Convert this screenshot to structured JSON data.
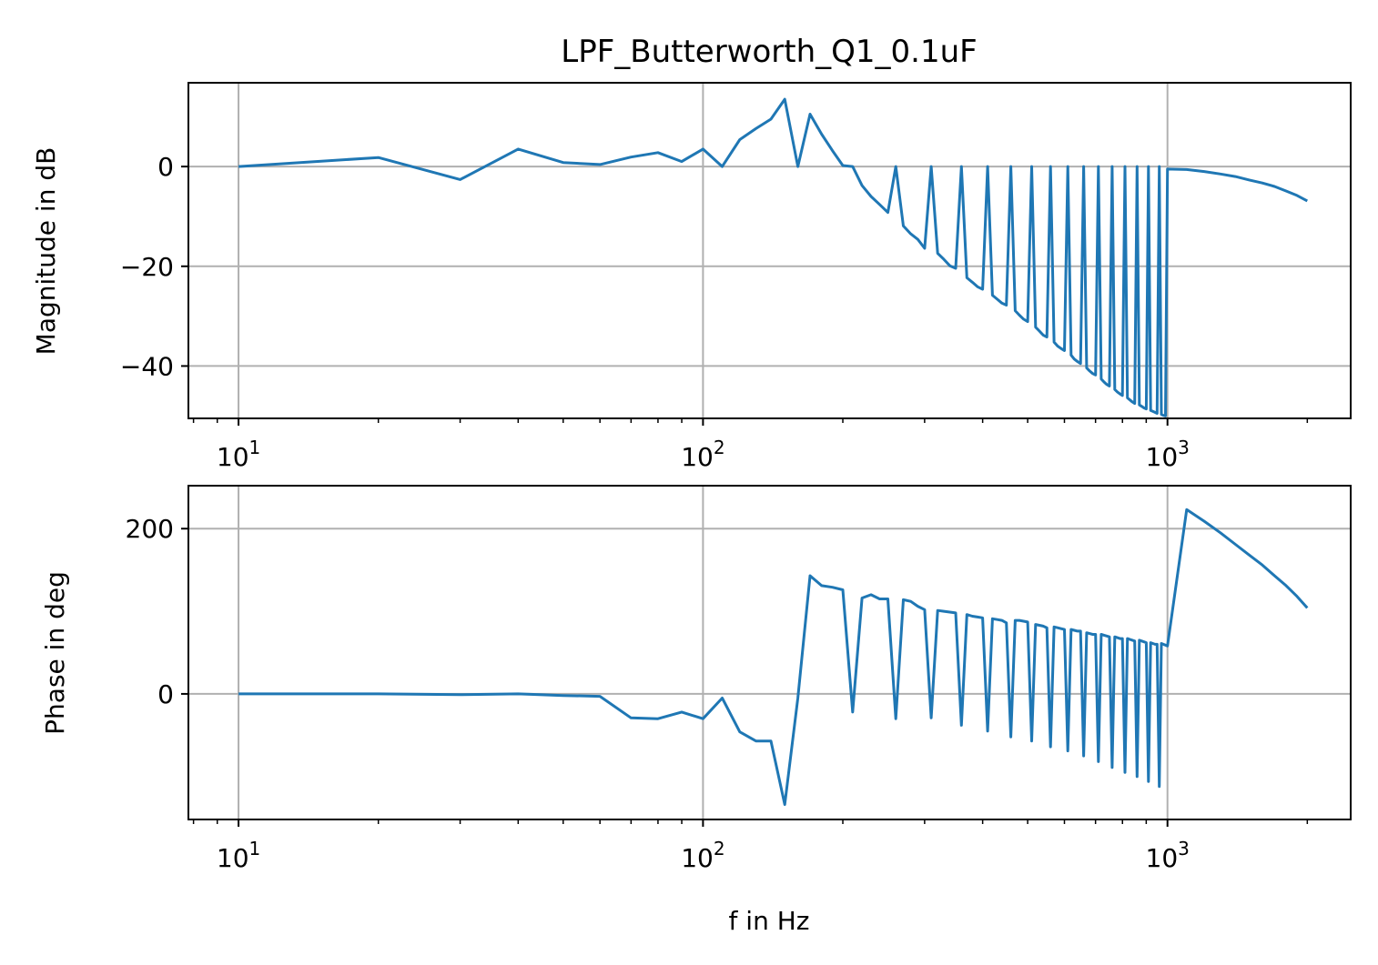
{
  "title": "LPF_Butterworth_Q1_0.1uF",
  "colors": {
    "series": "#1f77b4",
    "grid": "#b0b0b0",
    "axes": "#000000"
  },
  "chart_data": [
    {
      "type": "line",
      "id": "magnitude",
      "title": "LPF_Butterworth_Q1_0.1uF",
      "xlabel": "",
      "ylabel": "Magnitude in dB",
      "xscale": "log",
      "xlim": [
        7.8,
        2480
      ],
      "ylim": [
        -50.5,
        16.8
      ],
      "x_ticks": [
        {
          "base": "10",
          "exp": "1",
          "value": 10
        },
        {
          "base": "10",
          "exp": "2",
          "value": 100
        },
        {
          "base": "10",
          "exp": "3",
          "value": 1000
        }
      ],
      "y_ticks": [
        {
          "label": "0",
          "value": 0
        },
        {
          "label": "−20",
          "value": -20
        },
        {
          "label": "−40",
          "value": -40
        }
      ],
      "grid": true,
      "series": [
        {
          "x": [
            10,
            20,
            30,
            40,
            50,
            60,
            70,
            80,
            90,
            100,
            110,
            120,
            130,
            140,
            150,
            160,
            170,
            180,
            190,
            200,
            210,
            220,
            230,
            240,
            250,
            260,
            270,
            280,
            290,
            300,
            310,
            320,
            330,
            340,
            350,
            360,
            370,
            380,
            390,
            400,
            410,
            420,
            430,
            440,
            450,
            460,
            470,
            480,
            490,
            500,
            510,
            520,
            530,
            540,
            550,
            560,
            570,
            580,
            590,
            600,
            610,
            620,
            630,
            640,
            650,
            660,
            670,
            680,
            690,
            700,
            710,
            720,
            730,
            740,
            750,
            760,
            770,
            780,
            790,
            800,
            810,
            820,
            830,
            840,
            850,
            860,
            870,
            880,
            890,
            900,
            910,
            920,
            930,
            940,
            950,
            960,
            970,
            980,
            990,
            1000,
            1100,
            1200,
            1300,
            1400,
            1500,
            1600,
            1700,
            1800,
            1900,
            2000
          ],
          "y": [
            0,
            1.8,
            -2.6,
            3.5,
            0.8,
            0.4,
            1.9,
            2.8,
            1,
            3.5,
            0,
            5.4,
            7.6,
            9.5,
            13.5,
            0,
            10.5,
            6.5,
            3.2,
            0.2,
            0,
            -3.8,
            -6,
            -7.6,
            -9.2,
            0,
            -11.9,
            -13.5,
            -14.6,
            -16.4,
            0,
            -17.4,
            -18.6,
            -19.9,
            -20.4,
            0,
            -22.3,
            -23.2,
            -24.1,
            -24.6,
            0,
            -25.8,
            -26.6,
            -27.4,
            -27.8,
            0,
            -28.9,
            -29.8,
            -30.6,
            -31.1,
            0,
            -32.2,
            -33.0,
            -33.8,
            -34.2,
            0,
            -35.2,
            -36.0,
            -36.5,
            -36.9,
            0,
            -37.8,
            -38.6,
            -39.1,
            -39.5,
            0,
            -40.4,
            -41.0,
            -41.5,
            -41.8,
            0,
            -42.6,
            -43.2,
            -43.7,
            -44.0,
            0,
            -44.7,
            -45.2,
            -45.6,
            -45.9,
            0,
            -46.4,
            -46.8,
            -47.2,
            -47.5,
            0,
            -47.8,
            -48.1,
            -48.4,
            -48.6,
            0,
            -48.9,
            -49.1,
            -49.3,
            -49.5,
            0,
            -49.7,
            -49.9,
            -50.0,
            -0.5,
            -0.6,
            -1.0,
            -1.5,
            -2.0,
            -2.7,
            -3.3,
            -4.0,
            -4.9,
            -5.8,
            -6.9
          ]
        }
      ]
    },
    {
      "type": "line",
      "id": "phase",
      "title": "",
      "xlabel": "f in Hz",
      "ylabel": "Phase in deg",
      "xscale": "log",
      "xlim": [
        7.8,
        2480
      ],
      "ylim": [
        -152,
        252
      ],
      "x_ticks": [
        {
          "base": "10",
          "exp": "1",
          "value": 10
        },
        {
          "base": "10",
          "exp": "2",
          "value": 100
        },
        {
          "base": "10",
          "exp": "3",
          "value": 1000
        }
      ],
      "y_ticks": [
        {
          "label": "0",
          "value": 0
        },
        {
          "label": "200",
          "value": 200
        }
      ],
      "grid": true,
      "series": [
        {
          "x": [
            10,
            20,
            30,
            40,
            50,
            60,
            70,
            80,
            90,
            100,
            110,
            120,
            130,
            140,
            150,
            160,
            170,
            180,
            190,
            200,
            210,
            220,
            230,
            240,
            250,
            260,
            270,
            280,
            290,
            300,
            310,
            320,
            330,
            340,
            350,
            360,
            370,
            380,
            390,
            400,
            410,
            420,
            430,
            440,
            450,
            460,
            470,
            480,
            490,
            500,
            510,
            520,
            530,
            540,
            550,
            560,
            570,
            580,
            590,
            600,
            610,
            620,
            630,
            640,
            650,
            660,
            670,
            680,
            690,
            700,
            710,
            720,
            730,
            740,
            750,
            760,
            770,
            780,
            790,
            800,
            810,
            820,
            830,
            840,
            850,
            860,
            870,
            880,
            890,
            900,
            910,
            920,
            930,
            940,
            950,
            960,
            970,
            980,
            990,
            1000,
            1100,
            1200,
            1300,
            1400,
            1500,
            1600,
            1700,
            1800,
            1900,
            2000
          ],
          "y": [
            0,
            0,
            -1,
            0,
            -2,
            -3,
            -29,
            -30,
            -22,
            -30,
            -5,
            -46,
            -57,
            -57,
            -134,
            -5,
            143,
            131,
            129,
            126,
            -22,
            116,
            120,
            115,
            115,
            -30,
            114,
            112,
            106,
            102,
            -29,
            101,
            100,
            99,
            98,
            -38,
            96,
            94,
            93,
            92,
            -45,
            91,
            90,
            89,
            86,
            -52,
            89,
            89,
            88,
            87,
            -57,
            84,
            83,
            82,
            80,
            -64,
            81,
            80,
            79,
            78,
            -69,
            78,
            77,
            76,
            76,
            -75,
            74,
            73,
            72,
            72,
            -82,
            72,
            71,
            70,
            69,
            -89,
            69,
            68,
            67,
            67,
            -95,
            67,
            66,
            65,
            64,
            -100,
            65,
            64,
            63,
            62,
            -106,
            62,
            61,
            60,
            60,
            -112,
            61,
            60,
            59,
            58,
            223,
            209,
            195,
            181,
            168,
            156,
            143,
            131,
            118,
            104
          ]
        }
      ]
    }
  ]
}
